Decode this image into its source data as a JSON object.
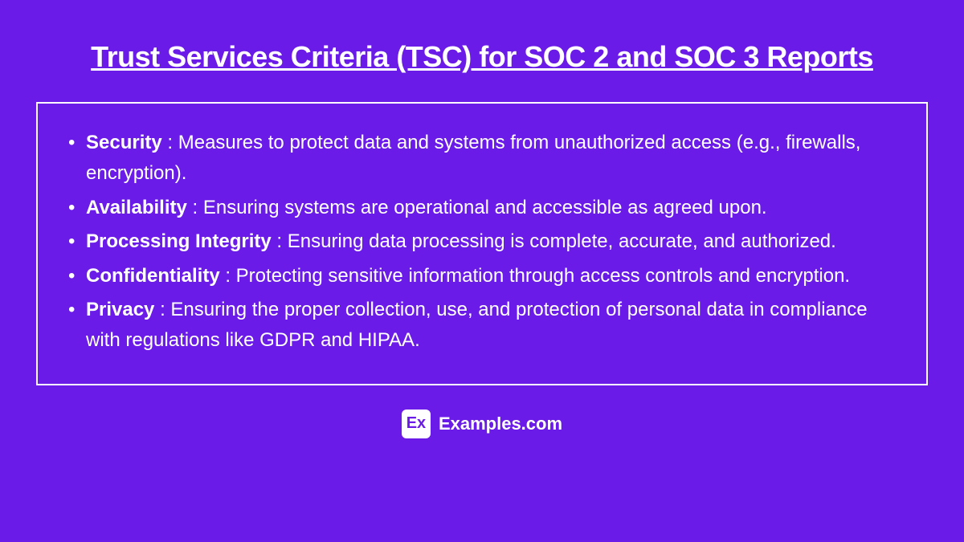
{
  "title": "Trust Services Criteria (TSC) for SOC 2 and SOC 3 Reports",
  "items": [
    {
      "term": "Security",
      "desc": " : Measures to protect data and systems from unauthorized access (e.g., firewalls, encryption)."
    },
    {
      "term": "Availability",
      "desc": " : Ensuring systems are operational and accessible as agreed upon."
    },
    {
      "term": "Processing Integrity",
      "desc": " : Ensuring data processing is complete, accurate, and authorized."
    },
    {
      "term": "Confidentiality",
      "desc": " : Protecting sensitive information through access controls and encryption."
    },
    {
      "term": "Privacy",
      "desc": " : Ensuring the proper collection, use, and protection of personal data in compliance with regulations like GDPR and HIPAA."
    }
  ],
  "footer": {
    "logo_abbr": "Ex",
    "logo_text": "Examples.com"
  },
  "styling": {
    "background_color": "#6a1be8",
    "text_color": "#ffffff",
    "border_color": "#ffffff",
    "title_fontsize": 36,
    "title_fontweight": 800,
    "body_fontsize": 24,
    "term_fontweight": 700,
    "logo_bg": "#ffffff",
    "logo_fg": "#6a1be8"
  }
}
